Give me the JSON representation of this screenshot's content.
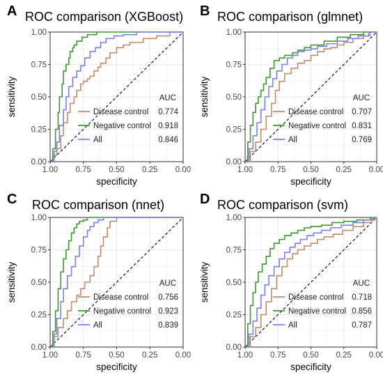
{
  "colors": {
    "disease_control": "#c58a6c",
    "negative_control": "#3a9a2c",
    "all": "#7b7ff0",
    "grid": "#ebebeb",
    "diagonal": "#000000"
  },
  "chart_data": [
    {
      "panel_letter": "A",
      "type": "line",
      "title": "ROC comparison (XGBoost)",
      "xlabel": "specificity",
      "ylabel": "sensitivity",
      "xlim": [
        1.0,
        0.0
      ],
      "ylim": [
        0.0,
        1.0
      ],
      "x_reversed": true,
      "xticks": [
        "1.00",
        "0.75",
        "0.50",
        "0.25",
        "0.00"
      ],
      "yticks": [
        "0.00",
        "0.25",
        "0.50",
        "0.75",
        "1.00"
      ],
      "grid": true,
      "legend_position": "bottom-right",
      "legend_title": "AUC",
      "series": [
        {
          "name": "Disease control",
          "auc": "0.774",
          "color_key": "disease_control",
          "specificity": [
            1.0,
            0.97,
            0.95,
            0.92,
            0.9,
            0.87,
            0.85,
            0.82,
            0.8,
            0.77,
            0.75,
            0.72,
            0.7,
            0.67,
            0.64,
            0.62,
            0.58,
            0.55,
            0.5,
            0.45,
            0.4,
            0.3,
            0.2,
            0.1,
            0.0
          ],
          "sensitivity": [
            0.0,
            0.05,
            0.1,
            0.2,
            0.3,
            0.38,
            0.45,
            0.5,
            0.55,
            0.6,
            0.62,
            0.64,
            0.66,
            0.7,
            0.73,
            0.76,
            0.8,
            0.84,
            0.88,
            0.9,
            0.92,
            0.95,
            0.97,
            1.0,
            1.0
          ]
        },
        {
          "name": "Negative control",
          "auc": "0.918",
          "color_key": "negative_control",
          "specificity": [
            1.0,
            0.98,
            0.96,
            0.94,
            0.93,
            0.91,
            0.9,
            0.88,
            0.86,
            0.85,
            0.83,
            0.82,
            0.8,
            0.76,
            0.72,
            0.65,
            0.55,
            0.4,
            0.2,
            0.0
          ],
          "sensitivity": [
            0.0,
            0.1,
            0.25,
            0.38,
            0.5,
            0.6,
            0.7,
            0.75,
            0.8,
            0.85,
            0.88,
            0.9,
            0.93,
            0.96,
            0.98,
            1.0,
            1.0,
            1.0,
            1.0,
            1.0
          ]
        },
        {
          "name": "All",
          "auc": "0.846",
          "color_key": "all",
          "specificity": [
            1.0,
            0.97,
            0.95,
            0.93,
            0.9,
            0.88,
            0.86,
            0.83,
            0.8,
            0.77,
            0.74,
            0.7,
            0.66,
            0.62,
            0.58,
            0.52,
            0.45,
            0.35,
            0.25,
            0.1,
            0.0
          ],
          "sensitivity": [
            0.0,
            0.08,
            0.15,
            0.28,
            0.4,
            0.5,
            0.58,
            0.65,
            0.7,
            0.74,
            0.8,
            0.85,
            0.88,
            0.92,
            0.95,
            0.97,
            0.98,
            1.0,
            1.0,
            1.0,
            1.0
          ]
        }
      ]
    },
    {
      "panel_letter": "B",
      "type": "line",
      "title": "ROC comparison (glmnet)",
      "xlabel": "specificity",
      "ylabel": "sensitivity",
      "xlim": [
        1.0,
        0.0
      ],
      "ylim": [
        0.0,
        1.0
      ],
      "x_reversed": true,
      "xticks": [
        "1.00",
        "0.75",
        "0.50",
        "0.25",
        "0.00"
      ],
      "yticks": [
        "0.00",
        "0.25",
        "0.50",
        "0.75",
        "1.00"
      ],
      "grid": true,
      "legend_position": "bottom-right",
      "legend_title": "AUC",
      "series": [
        {
          "name": "Disease control",
          "auc": "0.707",
          "color_key": "disease_control",
          "specificity": [
            1.0,
            0.96,
            0.92,
            0.88,
            0.84,
            0.8,
            0.77,
            0.74,
            0.7,
            0.65,
            0.6,
            0.55,
            0.5,
            0.45,
            0.4,
            0.35,
            0.3,
            0.25,
            0.18,
            0.1,
            0.05,
            0.0
          ],
          "sensitivity": [
            0.0,
            0.08,
            0.15,
            0.25,
            0.35,
            0.45,
            0.55,
            0.62,
            0.68,
            0.72,
            0.76,
            0.78,
            0.82,
            0.85,
            0.87,
            0.88,
            0.9,
            0.92,
            0.95,
            0.97,
            1.0,
            1.0
          ]
        },
        {
          "name": "Negative control",
          "auc": "0.831",
          "color_key": "negative_control",
          "specificity": [
            1.0,
            0.98,
            0.96,
            0.94,
            0.92,
            0.9,
            0.88,
            0.86,
            0.84,
            0.81,
            0.78,
            0.74,
            0.7,
            0.64,
            0.6,
            0.55,
            0.5,
            0.4,
            0.3,
            0.2,
            0.1,
            0.0
          ],
          "sensitivity": [
            0.0,
            0.15,
            0.28,
            0.38,
            0.45,
            0.5,
            0.55,
            0.6,
            0.65,
            0.72,
            0.78,
            0.8,
            0.82,
            0.84,
            0.86,
            0.88,
            0.9,
            0.93,
            0.96,
            0.98,
            1.0,
            1.0
          ]
        },
        {
          "name": "All",
          "auc": "0.769",
          "color_key": "all",
          "specificity": [
            1.0,
            0.97,
            0.94,
            0.91,
            0.88,
            0.85,
            0.82,
            0.79,
            0.76,
            0.72,
            0.68,
            0.64,
            0.6,
            0.55,
            0.5,
            0.45,
            0.38,
            0.3,
            0.22,
            0.14,
            0.06,
            0.0
          ],
          "sensitivity": [
            0.0,
            0.1,
            0.2,
            0.3,
            0.4,
            0.5,
            0.58,
            0.64,
            0.7,
            0.75,
            0.8,
            0.82,
            0.85,
            0.86,
            0.87,
            0.89,
            0.91,
            0.93,
            0.95,
            0.97,
            1.0,
            1.0
          ]
        }
      ]
    },
    {
      "panel_letter": "C",
      "type": "line",
      "title": "ROC comparison (nnet)",
      "xlabel": "specificity",
      "ylabel": "sensitivity",
      "xlim": [
        1.0,
        0.0
      ],
      "ylim": [
        0.0,
        1.0
      ],
      "x_reversed": true,
      "xticks": [
        "1.00",
        "0.75",
        "0.50",
        "0.25",
        "0.00"
      ],
      "yticks": [
        "0.00",
        "0.25",
        "0.50",
        "0.75",
        "1.00"
      ],
      "grid": true,
      "legend_position": "bottom-right",
      "legend_title": "AUC",
      "series": [
        {
          "name": "Disease control",
          "auc": "0.756",
          "color_key": "disease_control",
          "specificity": [
            1.0,
            0.97,
            0.94,
            0.9,
            0.87,
            0.84,
            0.8,
            0.77,
            0.74,
            0.7,
            0.67,
            0.64,
            0.62,
            0.6,
            0.57,
            0.55,
            0.5,
            0.4,
            0.3,
            0.2,
            0.0
          ],
          "sensitivity": [
            0.0,
            0.08,
            0.15,
            0.22,
            0.28,
            0.35,
            0.4,
            0.45,
            0.5,
            0.55,
            0.62,
            0.7,
            0.78,
            0.85,
            0.92,
            0.97,
            1.0,
            1.0,
            1.0,
            1.0,
            1.0
          ]
        },
        {
          "name": "Negative control",
          "auc": "0.923",
          "color_key": "negative_control",
          "specificity": [
            1.0,
            0.98,
            0.96,
            0.94,
            0.92,
            0.9,
            0.88,
            0.86,
            0.84,
            0.82,
            0.8,
            0.78,
            0.75,
            0.72,
            0.68,
            0.6,
            0.5,
            0.3,
            0.0
          ],
          "sensitivity": [
            0.0,
            0.12,
            0.28,
            0.45,
            0.58,
            0.68,
            0.75,
            0.82,
            0.88,
            0.92,
            0.95,
            0.97,
            0.98,
            1.0,
            1.0,
            1.0,
            1.0,
            1.0,
            1.0
          ]
        },
        {
          "name": "All",
          "auc": "0.839",
          "color_key": "all",
          "specificity": [
            1.0,
            0.97,
            0.95,
            0.92,
            0.9,
            0.87,
            0.84,
            0.81,
            0.78,
            0.75,
            0.72,
            0.7,
            0.67,
            0.64,
            0.6,
            0.55,
            0.45,
            0.3,
            0.1,
            0.0
          ],
          "sensitivity": [
            0.0,
            0.1,
            0.22,
            0.35,
            0.45,
            0.55,
            0.62,
            0.7,
            0.78,
            0.85,
            0.9,
            0.93,
            0.96,
            0.98,
            1.0,
            1.0,
            1.0,
            1.0,
            1.0,
            1.0
          ]
        }
      ]
    },
    {
      "panel_letter": "D",
      "type": "line",
      "title": "ROC comparison (svm)",
      "xlabel": "specificity",
      "ylabel": "sensitivity",
      "xlim": [
        1.0,
        0.0
      ],
      "ylim": [
        0.0,
        1.0
      ],
      "x_reversed": true,
      "xticks": [
        "1.00",
        "0.75",
        "0.50",
        "0.25",
        "0.00"
      ],
      "yticks": [
        "0.00",
        "0.25",
        "0.50",
        "0.75",
        "1.00"
      ],
      "grid": true,
      "legend_position": "bottom-right",
      "legend_title": "AUC",
      "series": [
        {
          "name": "Disease control",
          "auc": "0.718",
          "color_key": "disease_control",
          "specificity": [
            1.0,
            0.96,
            0.92,
            0.88,
            0.84,
            0.8,
            0.76,
            0.72,
            0.68,
            0.64,
            0.6,
            0.55,
            0.5,
            0.45,
            0.4,
            0.33,
            0.26,
            0.18,
            0.1,
            0.04,
            0.0
          ],
          "sensitivity": [
            0.0,
            0.08,
            0.15,
            0.25,
            0.35,
            0.45,
            0.55,
            0.62,
            0.68,
            0.72,
            0.75,
            0.78,
            0.8,
            0.83,
            0.85,
            0.87,
            0.9,
            0.93,
            0.96,
            0.99,
            1.0
          ]
        },
        {
          "name": "Negative control",
          "auc": "0.856",
          "color_key": "negative_control",
          "specificity": [
            1.0,
            0.98,
            0.96,
            0.94,
            0.92,
            0.9,
            0.87,
            0.84,
            0.81,
            0.78,
            0.74,
            0.7,
            0.65,
            0.6,
            0.55,
            0.5,
            0.42,
            0.34,
            0.25,
            0.15,
            0.05,
            0.0
          ],
          "sensitivity": [
            0.0,
            0.18,
            0.32,
            0.42,
            0.5,
            0.58,
            0.64,
            0.7,
            0.76,
            0.8,
            0.83,
            0.86,
            0.88,
            0.9,
            0.92,
            0.93,
            0.94,
            0.96,
            0.97,
            0.98,
            1.0,
            1.0
          ]
        },
        {
          "name": "All",
          "auc": "0.787",
          "color_key": "all",
          "specificity": [
            1.0,
            0.97,
            0.94,
            0.91,
            0.88,
            0.85,
            0.82,
            0.78,
            0.74,
            0.7,
            0.66,
            0.62,
            0.58,
            0.53,
            0.48,
            0.42,
            0.35,
            0.27,
            0.18,
            0.1,
            0.03,
            0.0
          ],
          "sensitivity": [
            0.0,
            0.1,
            0.2,
            0.3,
            0.4,
            0.48,
            0.55,
            0.62,
            0.68,
            0.73,
            0.77,
            0.8,
            0.83,
            0.86,
            0.88,
            0.9,
            0.92,
            0.94,
            0.96,
            0.98,
            1.0,
            1.0
          ]
        }
      ]
    }
  ]
}
